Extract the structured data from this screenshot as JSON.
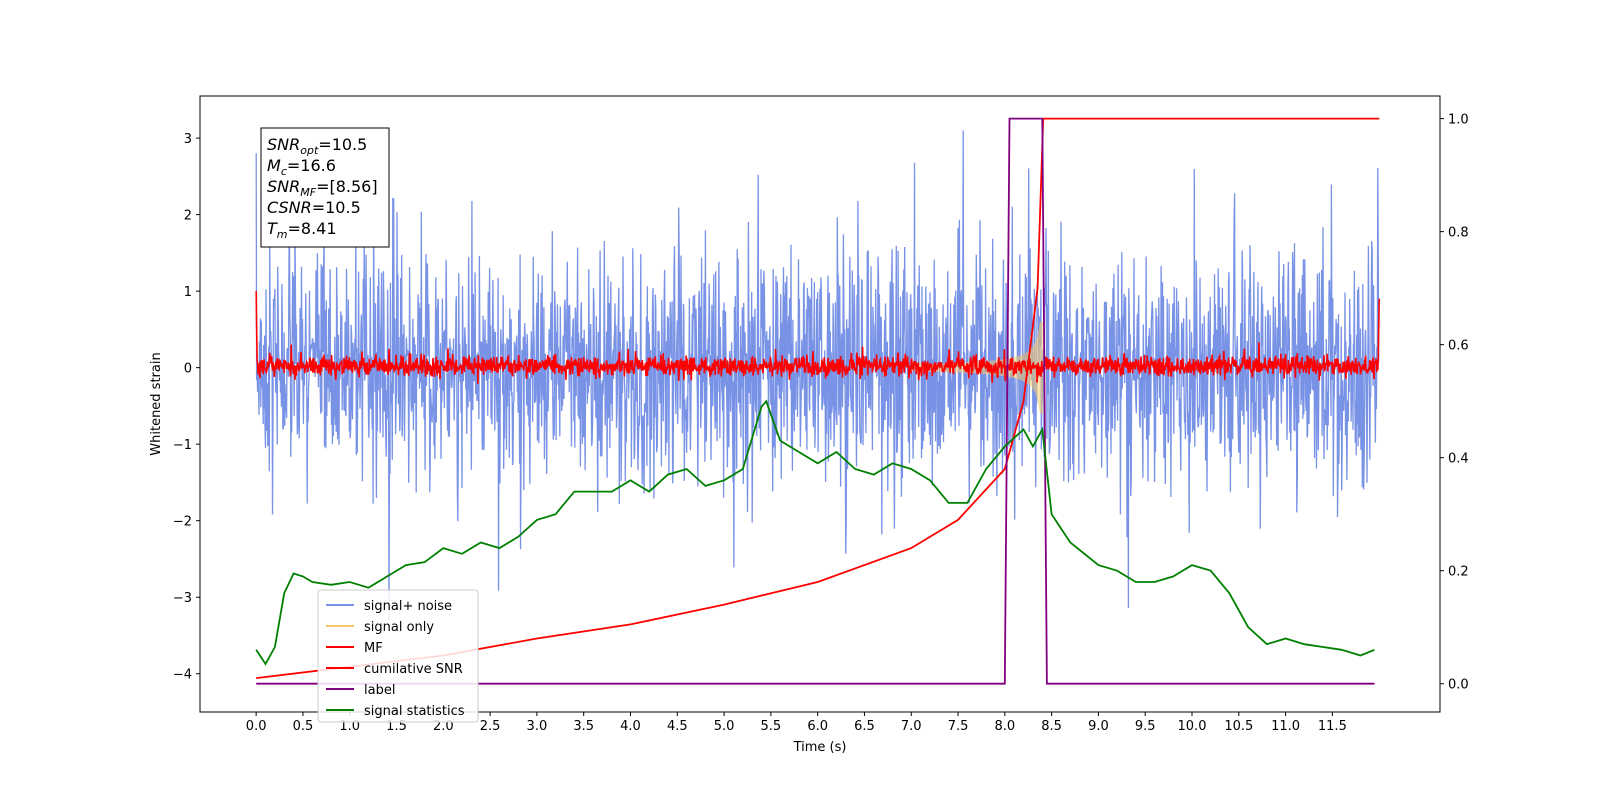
{
  "chart_data": {
    "type": "line",
    "xlabel": "Time (s)",
    "ylabel": "Whitened strain",
    "xlim": [
      -0.6,
      12.65
    ],
    "ylim": [
      -4.5,
      3.55
    ],
    "y2lim": [
      -0.05,
      1.04
    ],
    "x_ticks": [
      "0.0",
      "0.5",
      "1.0",
      "1.5",
      "2.0",
      "2.5",
      "3.0",
      "3.5",
      "4.0",
      "4.5",
      "5.0",
      "5.5",
      "6.0",
      "6.5",
      "7.0",
      "7.5",
      "8.0",
      "8.5",
      "9.0",
      "9.5",
      "10.0",
      "10.5",
      "11.0",
      "11.5"
    ],
    "y_ticks": [
      "3",
      "2",
      "1",
      "0",
      "−1",
      "−2",
      "−3",
      "−4"
    ],
    "y2_ticks": [
      "1.0",
      "0.8",
      "0.6",
      "0.4",
      "0.2",
      "0.0"
    ],
    "legend_position": "lower-left",
    "annotation": [
      {
        "base": "SNR",
        "sub": "opt",
        "rest": "=10.5"
      },
      {
        "base": "M",
        "sub": "c",
        "rest": "=16.6"
      },
      {
        "base": "SNR",
        "sub": "MF",
        "rest": "=[8.56]"
      },
      {
        "base": "CSNR",
        "sub": "",
        "rest": "=10.5"
      },
      {
        "base": "T",
        "sub": "m",
        "rest": "=8.41"
      }
    ],
    "series": [
      {
        "name": "signal+ noise",
        "color": "#7892e6",
        "axis": "left",
        "style": "noise",
        "x_range": [
          0,
          12
        ],
        "envelope": [
          -1.4,
          1.4
        ],
        "peaks": [
          3.1,
          -3.3
        ]
      },
      {
        "name": "signal only",
        "color": "#f5c869",
        "axis": "left",
        "style": "chirp",
        "x_range": [
          7.0,
          8.41
        ],
        "peak_amplitude": 0.6
      },
      {
        "name": "MF",
        "color": "#ff0000",
        "axis": "left",
        "style": "noise",
        "x_range": [
          0,
          12
        ],
        "envelope": [
          -0.2,
          0.25
        ]
      },
      {
        "name": "cumilative SNR",
        "color": "#ff0000",
        "axis": "right",
        "x": [
          0.0,
          1.0,
          2.0,
          3.0,
          4.0,
          5.0,
          6.0,
          7.0,
          7.5,
          8.0,
          8.2,
          8.35,
          8.41,
          8.5,
          11.5,
          12.0
        ],
        "y": [
          0.01,
          0.03,
          0.05,
          0.08,
          0.105,
          0.14,
          0.18,
          0.24,
          0.29,
          0.38,
          0.5,
          0.7,
          1.0,
          1.0,
          1.0,
          1.0
        ]
      },
      {
        "name": "label",
        "color": "#800080",
        "axis": "right",
        "x": [
          0.0,
          8.0,
          8.05,
          8.4,
          8.45,
          11.95
        ],
        "y": [
          0.0,
          0.0,
          1.0,
          1.0,
          0.0,
          0.0
        ]
      },
      {
        "name": "signal statistics",
        "color": "#008000",
        "axis": "right",
        "x": [
          0.0,
          0.1,
          0.2,
          0.3,
          0.4,
          0.5,
          0.6,
          0.8,
          1.0,
          1.2,
          1.4,
          1.6,
          1.8,
          2.0,
          2.2,
          2.4,
          2.6,
          2.8,
          3.0,
          3.2,
          3.4,
          3.6,
          3.8,
          4.0,
          4.2,
          4.4,
          4.6,
          4.8,
          5.0,
          5.2,
          5.4,
          5.45,
          5.6,
          5.8,
          6.0,
          6.2,
          6.4,
          6.6,
          6.8,
          7.0,
          7.2,
          7.4,
          7.6,
          7.8,
          8.0,
          8.2,
          8.3,
          8.4,
          8.5,
          8.7,
          9.0,
          9.2,
          9.4,
          9.6,
          9.8,
          10.0,
          10.2,
          10.4,
          10.6,
          10.8,
          11.0,
          11.2,
          11.4,
          11.6,
          11.8,
          11.95
        ],
        "y": [
          0.06,
          0.035,
          0.065,
          0.16,
          0.195,
          0.19,
          0.18,
          0.175,
          0.18,
          0.17,
          0.19,
          0.21,
          0.215,
          0.24,
          0.23,
          0.25,
          0.24,
          0.26,
          0.29,
          0.3,
          0.34,
          0.34,
          0.34,
          0.36,
          0.34,
          0.37,
          0.38,
          0.35,
          0.36,
          0.38,
          0.49,
          0.5,
          0.43,
          0.41,
          0.39,
          0.41,
          0.38,
          0.37,
          0.39,
          0.38,
          0.36,
          0.32,
          0.32,
          0.38,
          0.42,
          0.45,
          0.42,
          0.45,
          0.3,
          0.25,
          0.21,
          0.2,
          0.18,
          0.18,
          0.19,
          0.21,
          0.2,
          0.16,
          0.1,
          0.07,
          0.08,
          0.07,
          0.065,
          0.06,
          0.05,
          0.06
        ]
      }
    ]
  }
}
